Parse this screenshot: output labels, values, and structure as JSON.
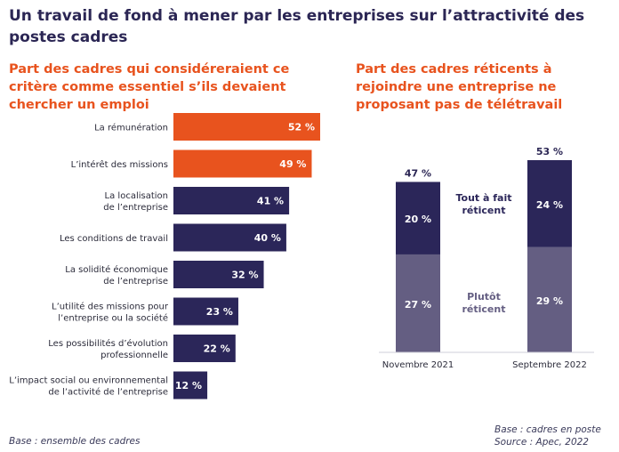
{
  "title": "Un travail de fond à mener par les entreprises sur l’attractivité des postes cadres",
  "colors": {
    "highlight": "#e8531e",
    "dark": "#2b2659",
    "light": "#645e82",
    "text": "#2b2654",
    "muted": "#3a3a5a"
  },
  "chart_data": [
    {
      "type": "bar",
      "orientation": "horizontal",
      "title": "Part des cadres qui considéreraient ce critère comme essentiel s’ils devaient chercher un emploi",
      "categories": [
        [
          "La rémunération"
        ],
        [
          "L’intérêt des missions"
        ],
        [
          "La localisation",
          "de l’entreprise"
        ],
        [
          "Les conditions de travail"
        ],
        [
          "La solidité économique",
          "de l’entreprise"
        ],
        [
          "L’utilité des missions pour",
          "l’entreprise ou la société"
        ],
        [
          "Les possibilités d’évolution",
          "professionnelle"
        ],
        [
          "L’impact social ou environnemental",
          "de l’activité de l’entreprise"
        ]
      ],
      "values": [
        52,
        49,
        41,
        40,
        32,
        23,
        22,
        12
      ],
      "value_labels": [
        "52 %",
        "49 %",
        "41 %",
        "40 %",
        "32 %",
        "23 %",
        "22 %",
        "12 %"
      ],
      "highlighted": [
        true,
        true,
        false,
        false,
        false,
        false,
        false,
        false
      ],
      "unit": "%",
      "xlim": [
        0,
        52
      ],
      "grid": false,
      "footnote": "Base : ensemble des cadres"
    },
    {
      "type": "bar",
      "stacked": true,
      "title": "Part des cadres réticents à rejoindre une entreprise ne proposant pas de télétravail",
      "categories": [
        "Novembre 2021",
        "Septembre 2022"
      ],
      "series": [
        {
          "name": "Plutôt réticent",
          "name_lines": [
            "Plutôt",
            "réticent"
          ],
          "values": [
            27,
            29
          ],
          "value_labels": [
            "27 %",
            "29 %"
          ]
        },
        {
          "name": "Tout à fait réticent",
          "name_lines": [
            "Tout à fait",
            "réticent"
          ],
          "values": [
            20,
            24
          ],
          "value_labels": [
            "20 %",
            "24 %"
          ]
        }
      ],
      "totals": [
        47,
        53
      ],
      "total_labels": [
        "47 %",
        "53 %"
      ],
      "unit": "%",
      "ylim": [
        0,
        53
      ],
      "grid": false,
      "footnotes": [
        "Base : cadres en poste",
        "Source : Apec, 2022"
      ]
    }
  ]
}
